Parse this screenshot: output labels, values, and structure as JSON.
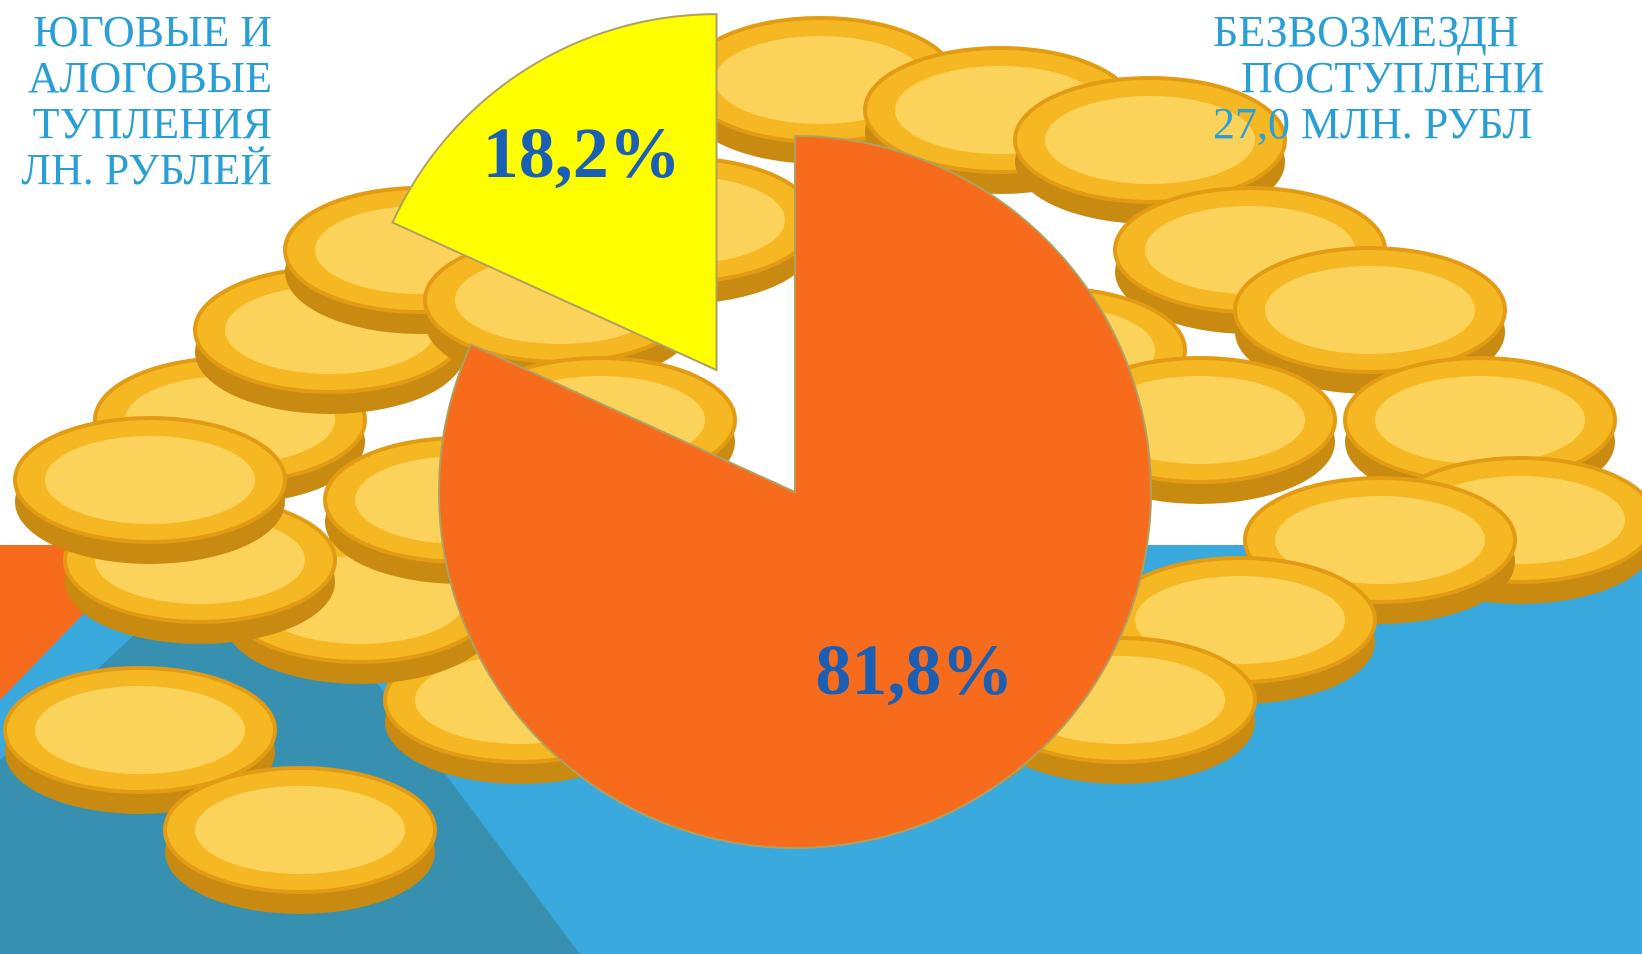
{
  "chart_data": {
    "type": "pie",
    "categories": [
      [
        "БЕЗВОЗМЕЗДН",
        "ПОСТУПЛЕНИ",
        "27,0 МЛН. РУБЛ"
      ],
      [
        "ЮГОВЫЕ И",
        "АЛОГОВЫЕ",
        "ТУПЛЕНИЯ",
        "ЛН. РУБЛЕЙ"
      ]
    ],
    "values": [
      81.8,
      18.2
    ],
    "value_labels": [
      "81,8%",
      "18,2%"
    ],
    "colors": [
      "#f76b1c",
      "#ffff00"
    ],
    "exploded": [
      false,
      true
    ]
  }
}
